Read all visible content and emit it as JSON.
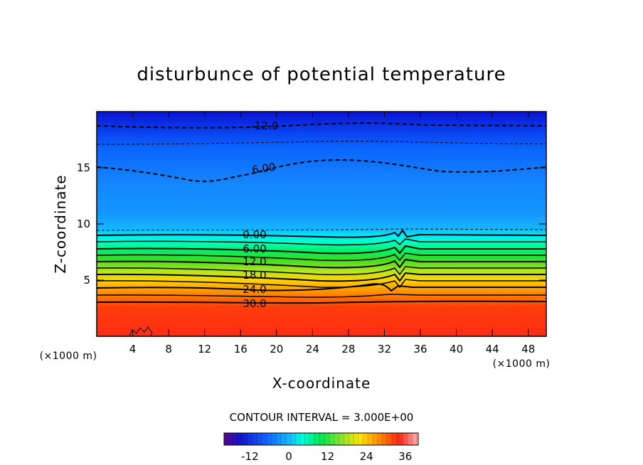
{
  "chart_data": {
    "type": "heatmap",
    "title": "disturbunce of potential temperature",
    "xlabel": "X-coordinate",
    "ylabel": "Z-coordinate",
    "x_unit": "(×1000 m)",
    "y_unit": "(×1000 m)",
    "xlim": [
      0,
      50
    ],
    "ylim": [
      0,
      20
    ],
    "x_ticks": [
      "4",
      "8",
      "12",
      "16",
      "20",
      "24",
      "28",
      "32",
      "36",
      "40",
      "44",
      "48"
    ],
    "y_ticks": [
      "5",
      "10",
      "15"
    ],
    "contour_interval_text": "CONTOUR INTERVAL = 3.000E+00",
    "contour_labels": [
      "-12.0",
      "6.00",
      "0.00",
      "6.00",
      "12.0",
      "18.0",
      "24.0",
      "30.0"
    ],
    "colorbar": {
      "range": [
        -20,
        40
      ],
      "ticks": [
        "-12",
        "0",
        "12",
        "24",
        "36"
      ]
    },
    "colors": {
      "coldest": "#0a14d2",
      "cold": "#1496ff",
      "neutral": "#00ffc8",
      "mid": "#78e632",
      "warm": "#ffd200",
      "hottest": "#ff2d14"
    }
  }
}
